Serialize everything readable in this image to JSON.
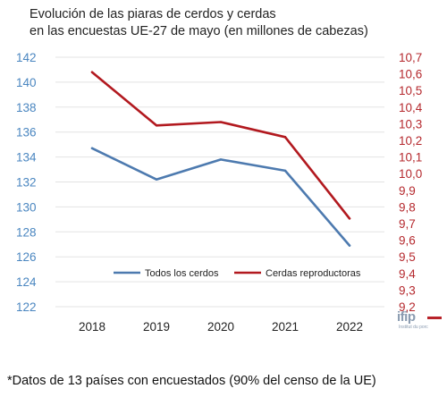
{
  "title_line1": "Evolución de las piaras de cerdos y cerdas",
  "title_line2": "en las encuestas UE-27 de mayo (en millones de cabezas)",
  "footnote": "*Datos de 13 países con encuestados (90% del censo de la UE)",
  "logo": {
    "name": "ifip",
    "subtitle": "Institut du porc"
  },
  "colors": {
    "left_axis": "#4a86c0",
    "right_axis": "#b5292e",
    "series1": "#4d7aaf",
    "series2": "#b2191f",
    "grid": "#e3e3e3"
  },
  "chart_data": {
    "type": "line",
    "title": "Evolución de las piaras de cerdos y cerdas en las encuestas UE-27 de mayo (en millones de cabezas)",
    "x": [
      "2018",
      "2019",
      "2020",
      "2021",
      "2022"
    ],
    "y_left": {
      "min": 122,
      "max": 142,
      "ticks": [
        "142",
        "140",
        "138",
        "136",
        "134",
        "132",
        "130",
        "128",
        "126",
        "124",
        "122"
      ]
    },
    "y_right": {
      "min": 9.2,
      "max": 10.7,
      "ticks": [
        "10,7",
        "10,6",
        "10,5",
        "10,4",
        "10,3",
        "10,2",
        "10,1",
        "10,0",
        "9,9",
        "9,8",
        "9,7",
        "9,6",
        "9,5",
        "9,4",
        "9,3",
        "9,2"
      ]
    },
    "grid": true,
    "legend_position": "bottom-inside",
    "series": [
      {
        "name": "Todos los cerdos",
        "axis": "left",
        "values": [
          134.7,
          132.2,
          133.8,
          132.9,
          126.9
        ]
      },
      {
        "name": "Cerdas reproductoras",
        "axis": "right",
        "values": [
          10.61,
          10.29,
          10.31,
          10.22,
          9.73
        ]
      }
    ]
  }
}
